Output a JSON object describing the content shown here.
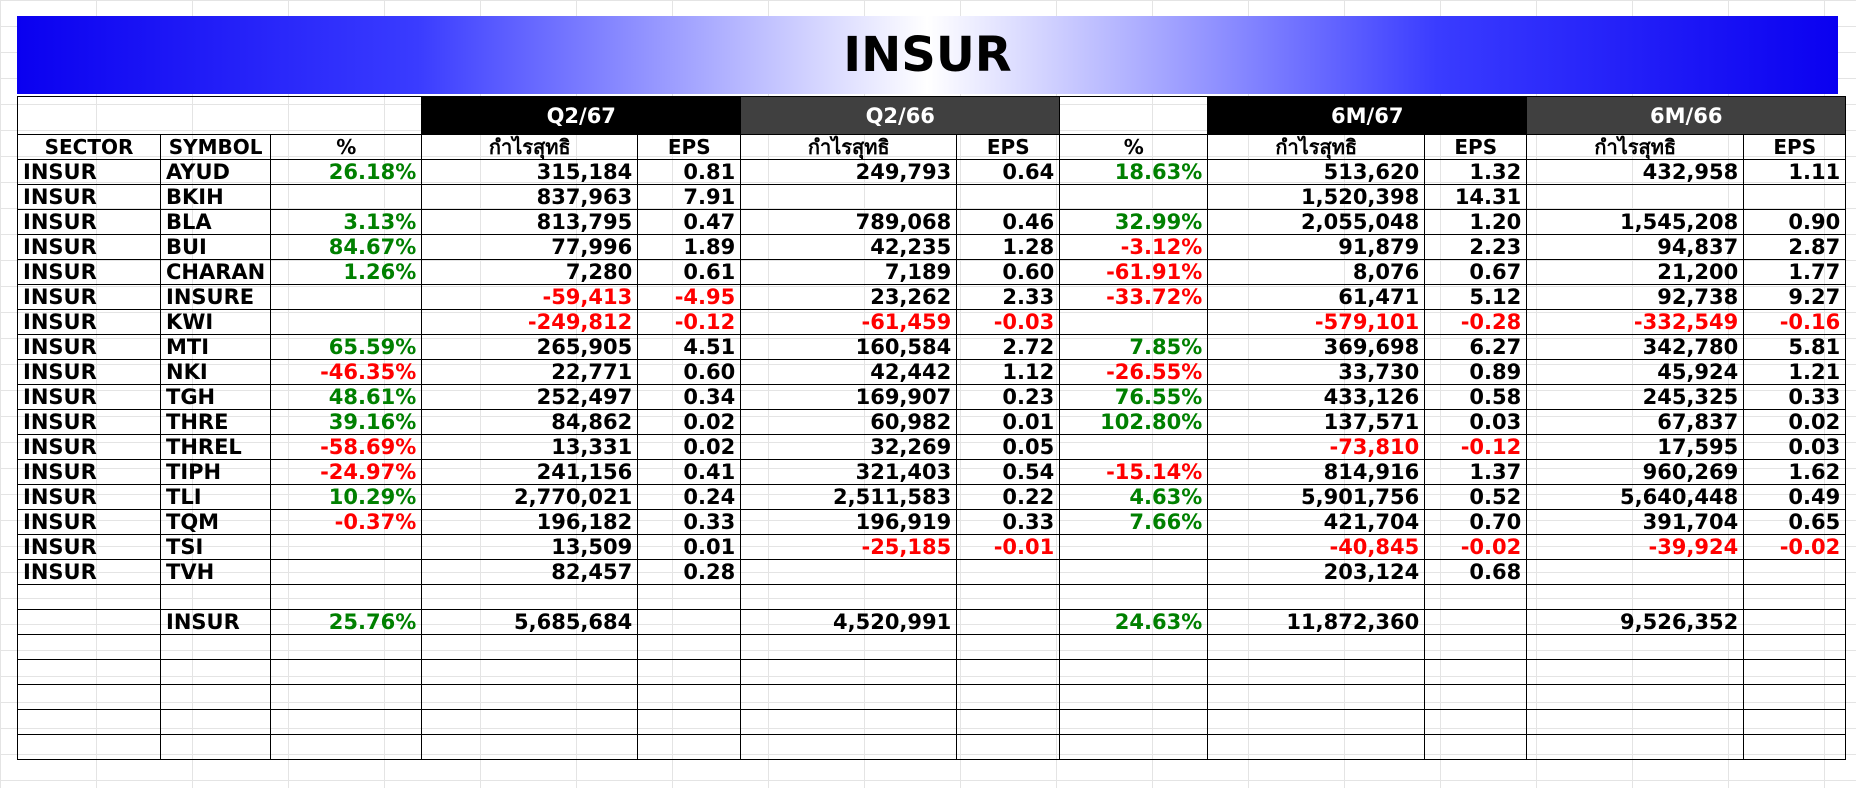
{
  "title": "INSUR",
  "periods": [
    "Q2/67",
    "Q2/66",
    "6M/67",
    "6M/66"
  ],
  "headers": [
    "SECTOR",
    "SYMBOL",
    "%",
    "กำไรสุทธิ",
    "EPS",
    "กำไรสุทธิ",
    "EPS",
    "%",
    "กำไรสุทธิ",
    "EPS",
    "กำไรสุทธิ",
    "EPS"
  ],
  "rows": [
    [
      "INSUR",
      "AYUD",
      "26.18%",
      "315,184",
      "0.81",
      "249,793",
      "0.64",
      "18.63%",
      "513,620",
      "1.32",
      "432,958",
      "1.11"
    ],
    [
      "INSUR",
      "BKIH",
      "",
      "837,963",
      "7.91",
      "",
      "",
      "",
      "1,520,398",
      "14.31",
      "",
      ""
    ],
    [
      "INSUR",
      "BLA",
      "3.13%",
      "813,795",
      "0.47",
      "789,068",
      "0.46",
      "32.99%",
      "2,055,048",
      "1.20",
      "1,545,208",
      "0.90"
    ],
    [
      "INSUR",
      "BUI",
      "84.67%",
      "77,996",
      "1.89",
      "42,235",
      "1.28",
      "-3.12%",
      "91,879",
      "2.23",
      "94,837",
      "2.87"
    ],
    [
      "INSUR",
      "CHARAN",
      "1.26%",
      "7,280",
      "0.61",
      "7,189",
      "0.60",
      "-61.91%",
      "8,076",
      "0.67",
      "21,200",
      "1.77"
    ],
    [
      "INSUR",
      "INSURE",
      "",
      "-59,413",
      "-4.95",
      "23,262",
      "2.33",
      "-33.72%",
      "61,471",
      "5.12",
      "92,738",
      "9.27"
    ],
    [
      "INSUR",
      "KWI",
      "",
      "-249,812",
      "-0.12",
      "-61,459",
      "-0.03",
      "",
      "-579,101",
      "-0.28",
      "-332,549",
      "-0.16"
    ],
    [
      "INSUR",
      "MTI",
      "65.59%",
      "265,905",
      "4.51",
      "160,584",
      "2.72",
      "7.85%",
      "369,698",
      "6.27",
      "342,780",
      "5.81"
    ],
    [
      "INSUR",
      "NKI",
      "-46.35%",
      "22,771",
      "0.60",
      "42,442",
      "1.12",
      "-26.55%",
      "33,730",
      "0.89",
      "45,924",
      "1.21"
    ],
    [
      "INSUR",
      "TGH",
      "48.61%",
      "252,497",
      "0.34",
      "169,907",
      "0.23",
      "76.55%",
      "433,126",
      "0.58",
      "245,325",
      "0.33"
    ],
    [
      "INSUR",
      "THRE",
      "39.16%",
      "84,862",
      "0.02",
      "60,982",
      "0.01",
      "102.80%",
      "137,571",
      "0.03",
      "67,837",
      "0.02"
    ],
    [
      "INSUR",
      "THREL",
      "-58.69%",
      "13,331",
      "0.02",
      "32,269",
      "0.05",
      "",
      "-73,810",
      "-0.12",
      "17,595",
      "0.03"
    ],
    [
      "INSUR",
      "TIPH",
      "-24.97%",
      "241,156",
      "0.41",
      "321,403",
      "0.54",
      "-15.14%",
      "814,916",
      "1.37",
      "960,269",
      "1.62"
    ],
    [
      "INSUR",
      "TLI",
      "10.29%",
      "2,770,021",
      "0.24",
      "2,511,583",
      "0.22",
      "4.63%",
      "5,901,756",
      "0.52",
      "5,640,448",
      "0.49"
    ],
    [
      "INSUR",
      "TQM",
      "-0.37%",
      "196,182",
      "0.33",
      "196,919",
      "0.33",
      "7.66%",
      "421,704",
      "0.70",
      "391,704",
      "0.65"
    ],
    [
      "INSUR",
      "TSI",
      "",
      "13,509",
      "0.01",
      "-25,185",
      "-0.01",
      "",
      "-40,845",
      "-0.02",
      "-39,924",
      "-0.02"
    ],
    [
      "INSUR",
      "TVH",
      "",
      "82,457",
      "0.28",
      "",
      "",
      "",
      "203,124",
      "0.68",
      "",
      ""
    ]
  ],
  "total": [
    "",
    "INSUR",
    "25.76%",
    "5,685,684",
    "",
    "4,520,991",
    "",
    "24.63%",
    "11,872,360",
    "",
    "9,526,352",
    ""
  ],
  "colors": {
    "positive": "#008000",
    "negative": "#ff0000",
    "banner_blue": "#0a00f0",
    "period_black": "#000000",
    "period_gray": "#404040"
  }
}
